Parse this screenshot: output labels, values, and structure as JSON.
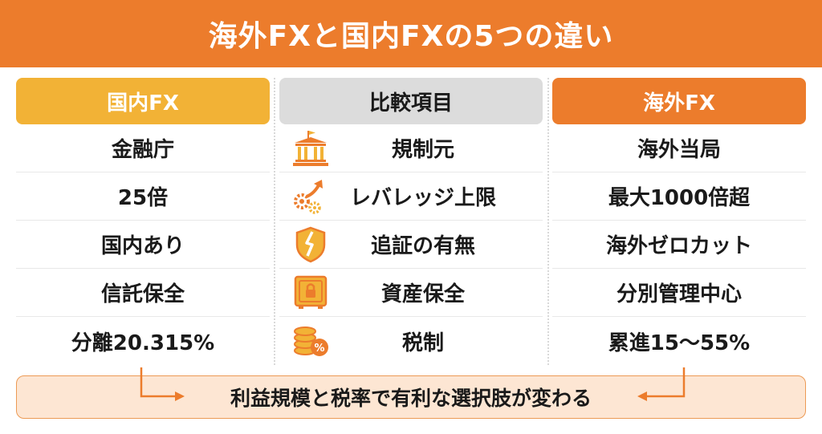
{
  "title": "海外FXと国内FXの5つの違い",
  "columns": {
    "left": {
      "header": "国内FX",
      "rows": [
        "金融庁",
        "25倍",
        "国内あり",
        "信託保全",
        "分離20.315%"
      ]
    },
    "middle": {
      "header": "比較項目",
      "rows": [
        {
          "label": "規制元",
          "icon": "bank-icon"
        },
        {
          "label": "レバレッジ上限",
          "icon": "gears-growth-arrow-icon"
        },
        {
          "label": "追証の有無",
          "icon": "broken-shield-icon"
        },
        {
          "label": "資産保全",
          "icon": "safe-lock-icon"
        },
        {
          "label": "税制",
          "icon": "coins-percent-icon"
        }
      ]
    },
    "right": {
      "header": "海外FX",
      "rows": [
        "海外当局",
        "最大1000倍超",
        "海外ゼロカット",
        "分別管理中心",
        "累進15〜55%"
      ]
    }
  },
  "footer": "利益規模と税率で有利な選択肢が変わる",
  "colors": {
    "accent_orange": "#ec7c2c",
    "accent_yellow": "#f2b236",
    "neutral_gray": "#dcdcdc",
    "footer_bg": "#fde6d3"
  }
}
